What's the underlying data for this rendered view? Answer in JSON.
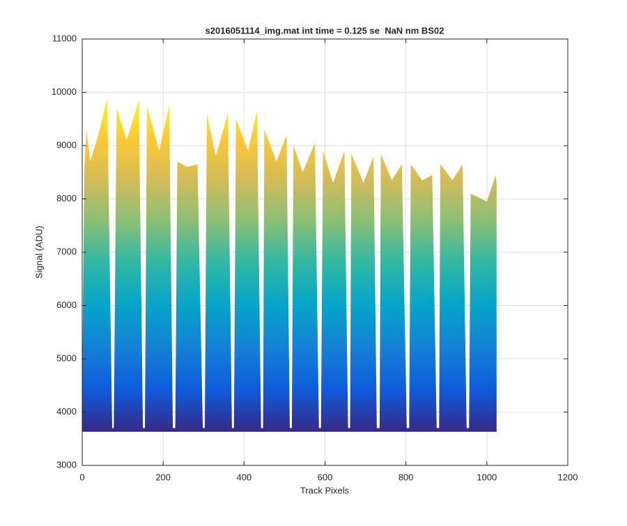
{
  "chart_data": {
    "type": "area",
    "title": "s2016051114_img.mat int time = 0.125 se  NaN nm BS02",
    "xlabel": "Track Pixels",
    "ylabel": "Signal (ADU)",
    "xlim": [
      0,
      1200
    ],
    "ylim": [
      3000,
      11000
    ],
    "xticks": [
      0,
      200,
      400,
      600,
      800,
      1000,
      1200
    ],
    "yticks": [
      3000,
      4000,
      5000,
      6000,
      7000,
      8000,
      9000,
      10000,
      11000
    ],
    "grid": true,
    "baseline": 3650,
    "colormap": [
      "#352a87",
      "#0f5cdd",
      "#1481d6",
      "#06a4ca",
      "#2eb7a4",
      "#87bf77",
      "#d1bb59",
      "#fec832",
      "#f9fb0e"
    ],
    "series": [
      {
        "x": [
          0,
          5,
          10,
          20,
          40,
          62,
          74,
          78,
          85,
          110,
          140,
          150,
          155,
          160,
          190,
          215,
          224,
          230,
          235,
          260,
          285,
          298,
          303,
          308,
          330,
          360,
          370,
          375,
          380,
          410,
          432,
          442,
          447,
          450,
          480,
          505,
          513,
          518,
          522,
          545,
          575,
          585,
          590,
          595,
          620,
          648,
          657,
          662,
          665,
          695,
          720,
          728,
          735,
          738,
          765,
          790,
          802,
          808,
          812,
          840,
          865,
          876,
          882,
          885,
          915,
          940,
          950,
          956,
          960,
          1000,
          1022,
          1024
        ],
        "values": [
          4500,
          8500,
          9300,
          8700,
          9200,
          9900,
          3700,
          3700,
          9700,
          9100,
          9850,
          3700,
          3700,
          9750,
          8900,
          9750,
          3700,
          3700,
          8700,
          8600,
          8650,
          3700,
          3700,
          9600,
          8800,
          9600,
          3700,
          3700,
          9500,
          8900,
          9650,
          3700,
          3700,
          9300,
          8700,
          9200,
          3700,
          3700,
          9000,
          8500,
          9050,
          3700,
          3700,
          8900,
          8300,
          8900,
          3700,
          3700,
          8850,
          8300,
          8800,
          3700,
          3700,
          8850,
          8350,
          8650,
          3700,
          3700,
          8650,
          8350,
          8450,
          3700,
          3700,
          8650,
          8350,
          8650,
          3700,
          3700,
          8100,
          7950,
          8450,
          8300
        ]
      }
    ]
  }
}
